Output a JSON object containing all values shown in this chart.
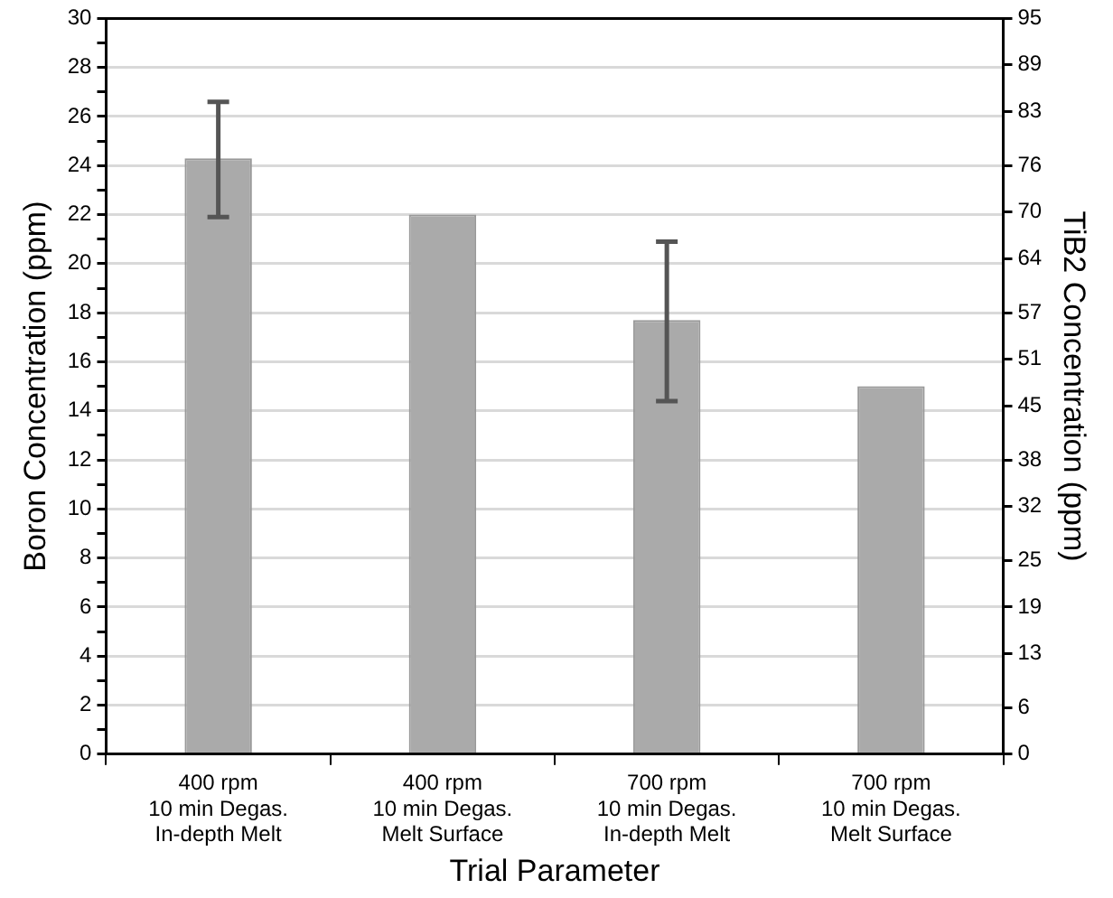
{
  "chart_data": {
    "type": "bar",
    "xlabel": "Trial Parameter",
    "ylabel": "Boron Concentration (ppm)",
    "y2label": "TiB2 Concentration (ppm)",
    "categories": [
      [
        "400 rpm",
        "10 min Degas.",
        "In-depth Melt"
      ],
      [
        "400 rpm",
        "10 min Degas.",
        "Melt Surface"
      ],
      [
        "700 rpm",
        "10 min Degas.",
        "In-depth Melt"
      ],
      [
        "700 rpm",
        "10 min Degas.",
        "Melt Surface"
      ]
    ],
    "values": [
      24.3,
      22,
      17.7,
      15
    ],
    "color": "#aaaaaa",
    "errors": [
      [
        21.9,
        26.6
      ],
      null,
      [
        14.4,
        20.9
      ],
      null
    ],
    "ylim": [
      0,
      30
    ],
    "yticks": [
      0,
      {
        "value": 1,
        "label": null
      },
      2,
      {
        "value": 3,
        "label": null
      },
      4,
      {
        "value": 5,
        "label": null
      },
      6,
      {
        "value": 7,
        "label": null
      },
      8,
      {
        "value": 9,
        "label": null
      },
      10,
      {
        "value": 11,
        "label": null
      },
      12,
      {
        "value": 13,
        "label": null
      },
      14,
      {
        "value": 15,
        "label": null
      },
      16,
      {
        "value": 17,
        "label": null
      },
      18,
      {
        "value": 19,
        "label": null
      },
      20,
      {
        "value": 21,
        "label": null
      },
      22,
      {
        "value": 23,
        "label": null
      },
      24,
      {
        "value": 25,
        "label": null
      },
      26,
      {
        "value": 27,
        "label": null
      },
      28,
      {
        "value": 29,
        "label": null
      },
      30
    ],
    "y2lim": [
      0,
      95
    ],
    "y2ticks": [
      0,
      6,
      13,
      19,
      25,
      32,
      38,
      45,
      51,
      57,
      64,
      70,
      76,
      83,
      89,
      95
    ],
    "grid": "y",
    "legend": false
  }
}
